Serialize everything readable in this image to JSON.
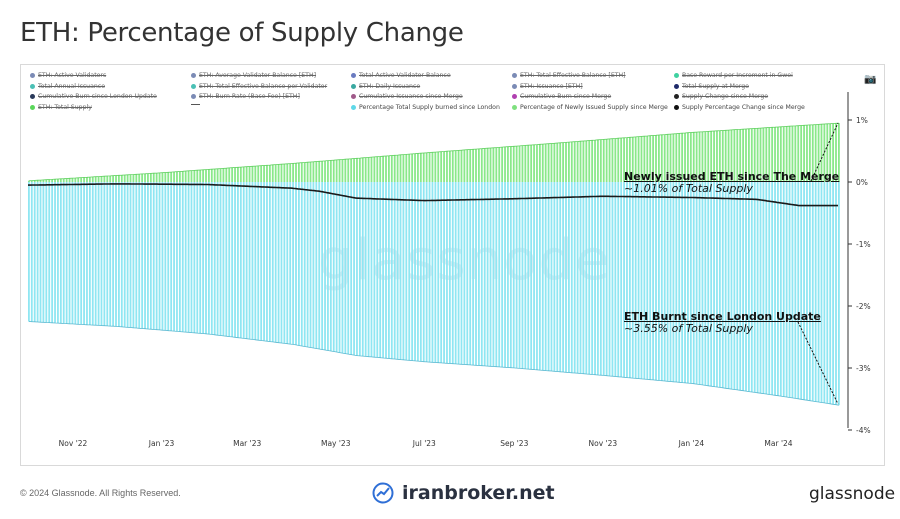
{
  "title": "ETH: Percentage of Supply Change",
  "legend": [
    {
      "label": "ETH: Active Validators",
      "color": "#7b8bb5",
      "active": false,
      "shape": "dot"
    },
    {
      "label": "ETH: Average Validator Balance [ETH]",
      "color": "#7b8bb5",
      "active": false,
      "shape": "dot"
    },
    {
      "label": "Total Active Validator Balance",
      "color": "#6a7bc0",
      "active": false,
      "shape": "dot"
    },
    {
      "label": "ETH: Total Effective Balance [ETH]",
      "color": "#7b8bb5",
      "active": false,
      "shape": "dot"
    },
    {
      "label": "Base Reward per Increment in Gwei",
      "color": "#3fd1a0",
      "active": false,
      "shape": "dot"
    },
    {
      "label": "Total Annual Issuance",
      "color": "#4bc0b5",
      "active": false,
      "shape": "dot"
    },
    {
      "label": "ETH: Total Effective Balance per Validator",
      "color": "#4bc0b5",
      "active": false,
      "shape": "dot"
    },
    {
      "label": "ETH: Daily Issuance",
      "color": "#3aa8a0",
      "active": false,
      "shape": "dot"
    },
    {
      "label": "ETH: Issuance [ETH]",
      "color": "#7b8bb5",
      "active": false,
      "shape": "dot"
    },
    {
      "label": "Total Supply at Merge",
      "color": "#1f2a6a",
      "active": false,
      "shape": "dot"
    },
    {
      "label": "Cumulative Burn since London Update",
      "color": "#2a3a5a",
      "active": false,
      "shape": "dot"
    },
    {
      "label": "ETH: Burn Rate (Base Fee) [ETH]",
      "color": "#7b8bb5",
      "active": false,
      "shape": "dot"
    },
    {
      "label": "Cumulative Issuance since Merge",
      "color": "#a05a8a",
      "active": false,
      "shape": "dot"
    },
    {
      "label": "Cumulative Burn since Merge",
      "color": "#b040b0",
      "active": false,
      "shape": "dot"
    },
    {
      "label": "Supply Change since Merge",
      "color": "#222222",
      "active": false,
      "shape": "dot"
    },
    {
      "label": "ETH: Total Supply",
      "color": "#5ad65a",
      "active": false,
      "shape": "dot"
    },
    {
      "label": "",
      "color": "#555555",
      "active": false,
      "shape": "line"
    },
    {
      "label": "Percentage Total Supply burned since London",
      "color": "#5fd8e8",
      "active": true,
      "shape": "dot"
    },
    {
      "label": "Percentage of Newly Issued Supply since Merge",
      "color": "#7fe07f",
      "active": true,
      "shape": "dot"
    },
    {
      "label": "Supply Percentage Change since Merge",
      "color": "#111111",
      "active": true,
      "shape": "dot"
    }
  ],
  "watermark": "glassnode",
  "annotations": {
    "issued": {
      "title": "Newly issued ETH since The Merge",
      "sub": "~1.01% of Total Supply"
    },
    "burnt": {
      "title": "ETH Burnt since London Update",
      "sub": "~3.55% of Total Supply"
    }
  },
  "footer": {
    "copyright": "© 2024 Glassnode. All Rights Reserved.",
    "center_brand": "iranbroker.net",
    "right_brand": "glassnode"
  },
  "colors": {
    "issued": "#8ae88a",
    "burnt": "#8fe6f2",
    "net": "#1a1a1a",
    "axis": "#333333"
  },
  "chart_data": {
    "type": "bar",
    "x_tick_labels": [
      "Nov '22",
      "Jan '23",
      "Mar '23",
      "May '23",
      "Jul '23",
      "Sep '23",
      "Nov '23",
      "Jan '24",
      "Mar '24"
    ],
    "x_range": [
      "2022-10-01",
      "2024-04-15"
    ],
    "y_tick_labels": [
      "1%",
      "0%",
      "-1%",
      "-2%",
      "-3%",
      "-4%"
    ],
    "y_ticks": [
      1,
      0,
      -1,
      -2,
      -3,
      -4
    ],
    "ylim": [
      -4,
      1.4
    ],
    "y_axis_position": "right",
    "series": [
      {
        "name": "Percentage of Newly Issued Supply since Merge",
        "kind": "bar",
        "x": [
          "2022-10-01",
          "2023-01-01",
          "2023-04-01",
          "2023-07-01",
          "2023-10-01",
          "2024-01-01",
          "2024-04-11"
        ],
        "values": [
          0.02,
          0.15,
          0.3,
          0.47,
          0.63,
          0.8,
          0.95
        ]
      },
      {
        "name": "Percentage Total Supply burned since London",
        "kind": "bar",
        "x": [
          "2022-10-01",
          "2022-12-01",
          "2023-02-01",
          "2023-04-01",
          "2023-05-15",
          "2023-07-01",
          "2023-09-01",
          "2023-11-01",
          "2024-01-01",
          "2024-03-01",
          "2024-04-11"
        ],
        "values": [
          -2.25,
          -2.33,
          -2.45,
          -2.62,
          -2.8,
          -2.9,
          -3.0,
          -3.12,
          -3.25,
          -3.45,
          -3.6
        ]
      },
      {
        "name": "Supply Percentage Change since Merge",
        "kind": "line",
        "x": [
          "2022-10-01",
          "2022-12-01",
          "2023-02-01",
          "2023-04-01",
          "2023-04-20",
          "2023-05-15",
          "2023-07-01",
          "2023-09-01",
          "2023-11-01",
          "2024-01-01",
          "2024-02-15",
          "2024-03-15",
          "2024-04-11"
        ],
        "values": [
          -0.05,
          -0.03,
          -0.04,
          -0.1,
          -0.15,
          -0.26,
          -0.3,
          -0.27,
          -0.23,
          -0.25,
          -0.28,
          -0.38,
          -0.38
        ]
      }
    ],
    "annotations": [
      {
        "text": "Newly issued ETH since The Merge",
        "sub": "~1.01% of Total Supply",
        "target": "issued"
      },
      {
        "text": "ETH Burnt since London Update",
        "sub": "~3.55% of Total Supply",
        "target": "burnt"
      }
    ],
    "grid": false
  }
}
